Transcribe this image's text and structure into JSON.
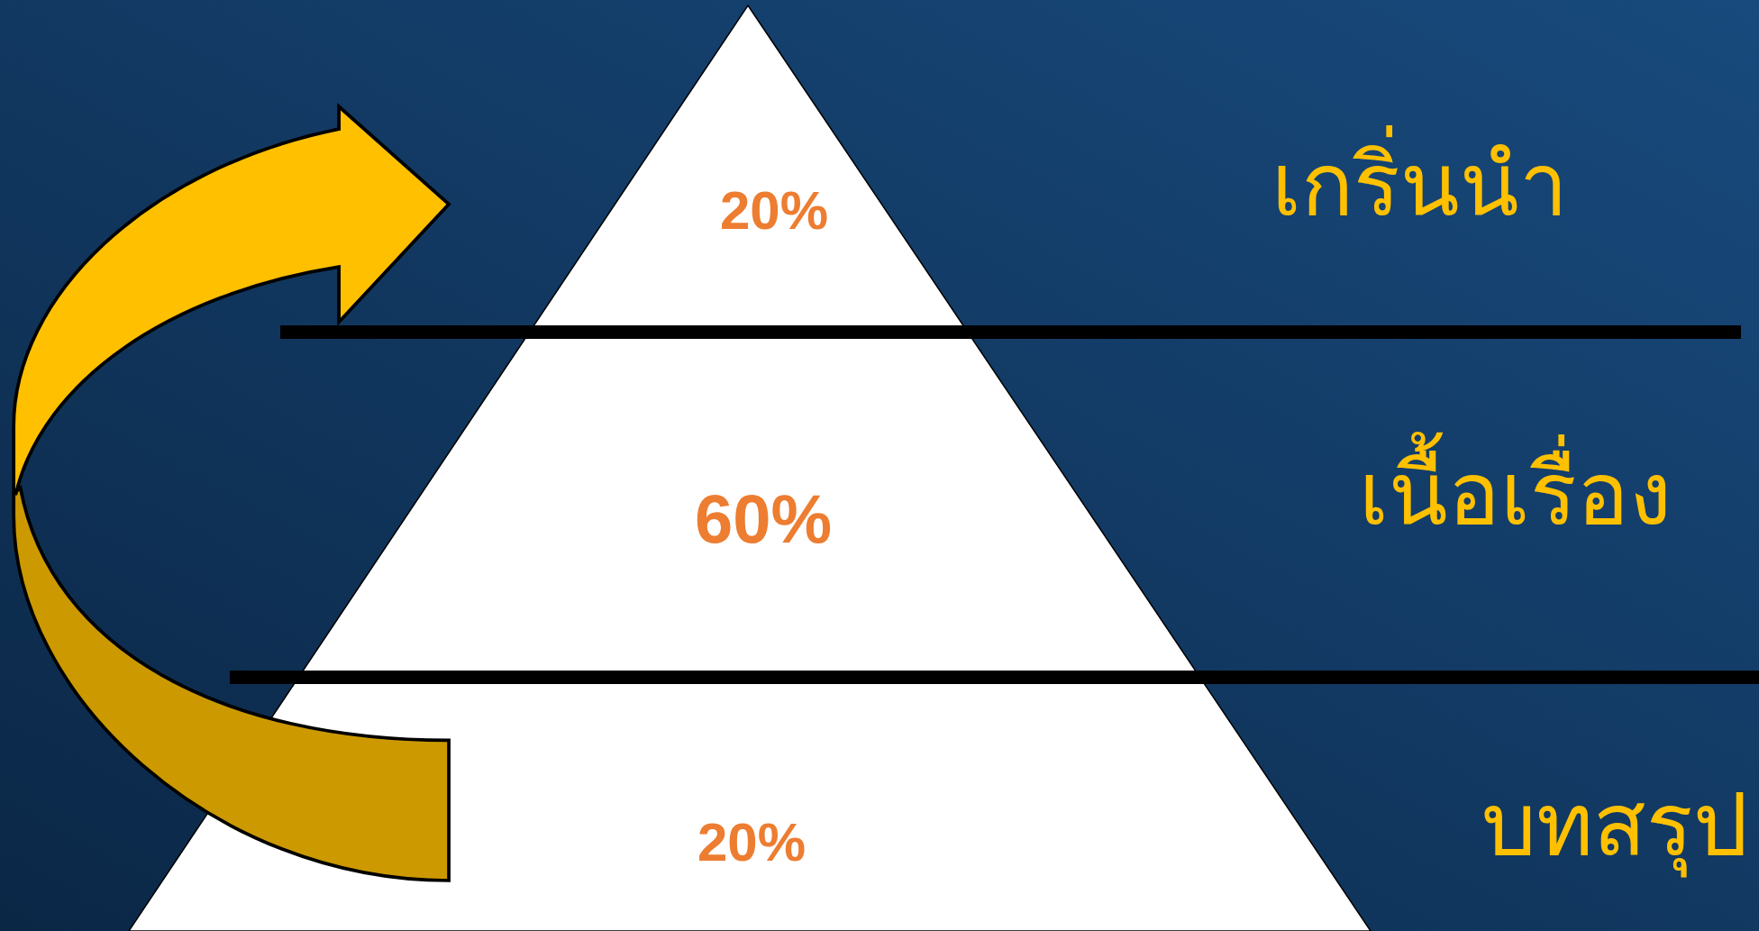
{
  "chart_data": {
    "type": "other",
    "categories": [
      "เกริ่นนำ",
      "เนื้อเรื่อง",
      "บทสรุป"
    ],
    "values": [
      20,
      60,
      20
    ],
    "value_labels": [
      "20%",
      "60%",
      "20%"
    ],
    "colors": [
      "#ffffff",
      "#ffffff",
      "#ffffff"
    ]
  }
}
